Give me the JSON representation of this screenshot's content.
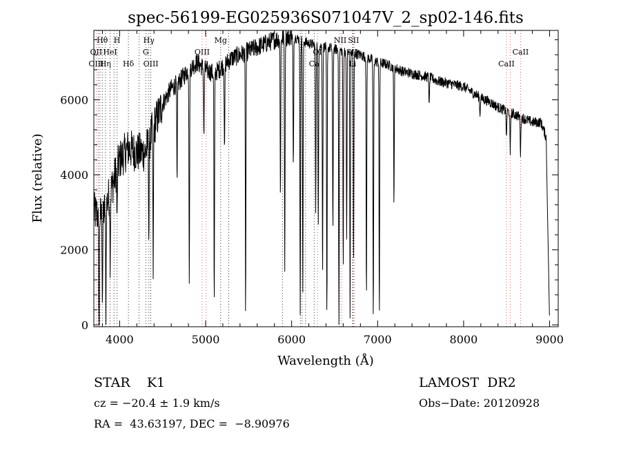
{
  "chart_data": {
    "type": "line",
    "title": "spec-56199-EG025936S071047V_2_sp02-146.fits",
    "xlabel": "Wavelength (Å)",
    "ylabel": "Flux (relative)",
    "xlim": [
      3700,
      9100
    ],
    "ylim": [
      -50,
      7850
    ],
    "xticks": [
      4000,
      5000,
      6000,
      7000,
      8000,
      9000
    ],
    "yticks": [
      0,
      2000,
      4000,
      6000
    ],
    "grid": false,
    "continuum": {
      "x": [
        3700,
        3800,
        3900,
        4000,
        4100,
        4200,
        4300,
        4400,
        4500,
        4600,
        4700,
        4800,
        4900,
        5000,
        5100,
        5200,
        5300,
        5400,
        5500,
        5600,
        5700,
        5800,
        5900,
        6000,
        6100,
        6200,
        6300,
        6400,
        6500,
        6600,
        6700,
        6800,
        6900,
        7000,
        7100,
        7200,
        7300,
        7400,
        7500,
        7600,
        7700,
        7800,
        7900,
        8000,
        8100,
        8200,
        8300,
        8400,
        8500,
        8600,
        8700,
        8800,
        8900,
        8960,
        9000
      ],
      "y": [
        3000,
        2900,
        3600,
        4400,
        4700,
        4600,
        4600,
        5300,
        5900,
        6300,
        6500,
        6800,
        7000,
        6800,
        6700,
        6900,
        7100,
        7200,
        7300,
        7400,
        7500,
        7600,
        7650,
        7700,
        7600,
        7500,
        7450,
        7400,
        7350,
        7300,
        7250,
        7200,
        7100,
        7000,
        6950,
        6850,
        6750,
        6700,
        6650,
        6600,
        6500,
        6450,
        6400,
        6350,
        6200,
        6050,
        5950,
        5800,
        5700,
        5600,
        5500,
        5400,
        5400,
        5000,
        0
      ]
    },
    "absorption_lines": [
      {
        "x": 3760,
        "depth": 4000
      },
      {
        "x": 3800,
        "depth": 2200
      },
      {
        "x": 3840,
        "depth": 2900
      },
      {
        "x": 3890,
        "depth": 1800
      },
      {
        "x": 3970,
        "depth": 1500
      },
      {
        "x": 4340,
        "depth": 2600
      },
      {
        "x": 4390,
        "depth": 3800
      },
      {
        "x": 4668,
        "depth": 2800
      },
      {
        "x": 4810,
        "depth": 5900
      },
      {
        "x": 4980,
        "depth": 1800
      },
      {
        "x": 5100,
        "depth": 6300
      },
      {
        "x": 5220,
        "depth": 2400
      },
      {
        "x": 5465,
        "depth": 7000
      },
      {
        "x": 5870,
        "depth": 4100
      },
      {
        "x": 5920,
        "depth": 6000
      },
      {
        "x": 6020,
        "depth": 3600
      },
      {
        "x": 6100,
        "depth": 7450
      },
      {
        "x": 6130,
        "depth": 6800
      },
      {
        "x": 6280,
        "depth": 4600
      },
      {
        "x": 6310,
        "depth": 4800
      },
      {
        "x": 6360,
        "depth": 6200
      },
      {
        "x": 6410,
        "depth": 7400
      },
      {
        "x": 6480,
        "depth": 5000
      },
      {
        "x": 6550,
        "depth": 7300
      },
      {
        "x": 6600,
        "depth": 5900
      },
      {
        "x": 6640,
        "depth": 5000
      },
      {
        "x": 6680,
        "depth": 7250
      },
      {
        "x": 6720,
        "depth": 5700
      },
      {
        "x": 6870,
        "depth": 6600
      },
      {
        "x": 6950,
        "depth": 7050
      },
      {
        "x": 7020,
        "depth": 6900
      },
      {
        "x": 7190,
        "depth": 3600
      },
      {
        "x": 7600,
        "depth": 800
      },
      {
        "x": 8190,
        "depth": 500
      },
      {
        "x": 8498,
        "depth": 800
      },
      {
        "x": 8542,
        "depth": 1200
      },
      {
        "x": 8662,
        "depth": 1000
      }
    ],
    "line_markers": [
      {
        "label": "Hθ",
        "x": 3798,
        "row": 0,
        "color": "#000000"
      },
      {
        "label": "H",
        "x": 3970,
        "row": 0,
        "color": "#000000"
      },
      {
        "label": "Hγ",
        "x": 4340,
        "row": 0,
        "color": "#000000"
      },
      {
        "label": "Mg",
        "x": 5175,
        "row": 0,
        "color": "#000000"
      },
      {
        "label": "NII",
        "x": 6565,
        "row": 0,
        "color": "#000000"
      },
      {
        "label": "SII",
        "x": 6720,
        "row": 0,
        "color": "#000000"
      },
      {
        "label": "OII",
        "x": 3727,
        "row": 1,
        "color": "#000000"
      },
      {
        "label": "HeI",
        "x": 3889,
        "row": 1,
        "color": "#000000"
      },
      {
        "label": "G",
        "x": 4304,
        "row": 1,
        "color": "#000000"
      },
      {
        "label": "OIII",
        "x": 4959,
        "row": 1,
        "color": "#000000"
      },
      {
        "label": "OI",
        "x": 6300,
        "row": 1,
        "color": "#000000"
      },
      {
        "label": "SII",
        "x": 6700,
        "row": 1,
        "color": "#000000"
      },
      {
        "label": "CaII",
        "x": 8662,
        "row": 1,
        "color": "#000000"
      },
      {
        "label": "OIII",
        "x": 3727,
        "row": 2,
        "color": "#000000"
      },
      {
        "label": "Hη",
        "x": 3835,
        "row": 2,
        "color": "#000000"
      },
      {
        "label": "Hδ",
        "x": 4102,
        "row": 2,
        "color": "#000000"
      },
      {
        "label": "OIII",
        "x": 4363,
        "row": 2,
        "color": "#000000"
      },
      {
        "label": "Ca",
        "x": 6262,
        "row": 2,
        "color": "#000000"
      },
      {
        "label": "Li",
        "x": 6708,
        "row": 2,
        "color": "#000000"
      },
      {
        "label": "CaII",
        "x": 8498,
        "row": 2,
        "color": "#000000"
      }
    ],
    "marker_colors": {
      "emission": "#d04040",
      "absorption": "#000000"
    },
    "emission_marker_wavelengths": [
      3727,
      4959,
      5007,
      6300,
      6563,
      6583,
      6716,
      6731,
      8498,
      8542,
      8662
    ],
    "absorption_marker_wavelengths": [
      3750,
      3771,
      3798,
      3835,
      3889,
      3934,
      3970,
      4102,
      4227,
      4304,
      4340,
      4363,
      5175,
      5269,
      5893,
      6102,
      6122,
      6162,
      6262,
      6708,
      6717
    ]
  },
  "footer": {
    "object": "STAR    K1",
    "survey": "LAMOST  DR2",
    "cz": "cz = −20.4 ± 1.9 km/s",
    "obs_date": "Obs−Date: 20120928",
    "coords": "RA =  43.63197, DEC =  −8.90976"
  }
}
